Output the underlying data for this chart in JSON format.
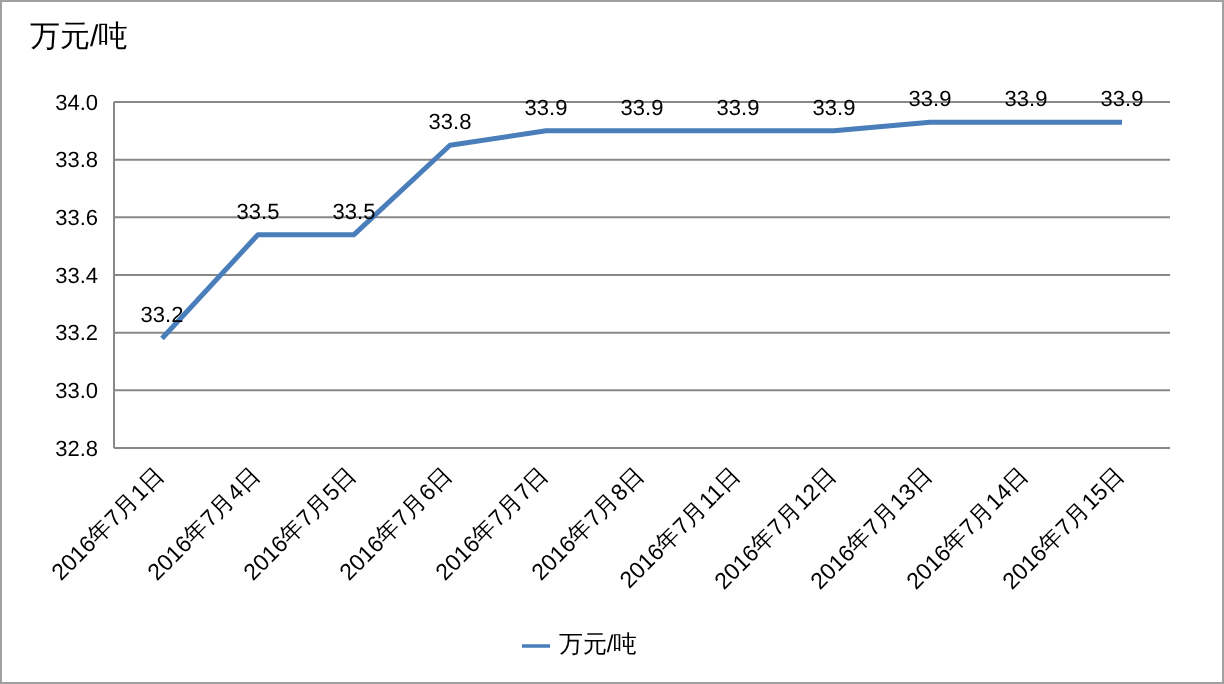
{
  "chart_data": {
    "type": "line",
    "ylabel": "万元/吨",
    "categories": [
      "2016年7月1日",
      "2016年7月4日",
      "2016年7月5日",
      "2016年7月6日",
      "2016年7月7日",
      "2016年7月8日",
      "2016年7月11日",
      "2016年7月12日",
      "2016年7月13日",
      "2016年7月14日",
      "2016年7月15日"
    ],
    "series": [
      {
        "name": "万元/吨",
        "color": "#4a7ebb",
        "values": [
          33.18,
          33.54,
          33.54,
          33.85,
          33.9,
          33.9,
          33.9,
          33.9,
          33.93,
          33.93,
          33.93
        ],
        "value_labels": [
          "33.2",
          "33.5",
          "33.5",
          "33.8",
          "33.9",
          "33.9",
          "33.9",
          "33.9",
          "33.9",
          "33.9",
          "33.9"
        ]
      }
    ],
    "ylim": [
      32.8,
      34.0
    ],
    "yticks": [
      32.8,
      {
        "value": 33,
        "label": "33.0"
      },
      33.2,
      33.4,
      33.6,
      33.8,
      {
        "value": 34,
        "label": "34.0"
      }
    ],
    "grid": "y",
    "legend": "bottom",
    "marker": "none",
    "line_style": "solid"
  }
}
